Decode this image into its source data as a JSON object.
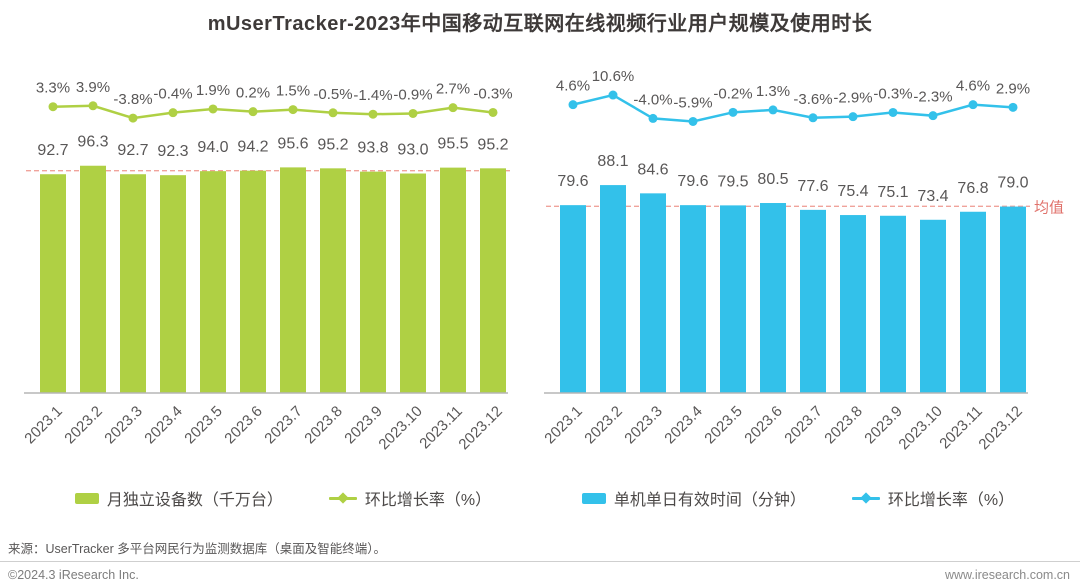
{
  "title": "mUserTracker-2023年中国移动互联网在线视频行业用户规模及使用时长",
  "colors": {
    "green": "#afd044",
    "blue": "#33c1ea",
    "mean_line": "#f0a39b",
    "mean_label": "#e0726b",
    "label_gray": "#595757",
    "axis": "#b5b5b6"
  },
  "chart_data": [
    {
      "type": "bar",
      "title": "",
      "categories": [
        "2023.1",
        "2023.2",
        "2023.3",
        "2023.4",
        "2023.5",
        "2023.6",
        "2023.7",
        "2023.8",
        "2023.9",
        "2023.10",
        "2023.11",
        "2023.12"
      ],
      "series": [
        {
          "name": "月独立设备数（千万台）",
          "type": "bar",
          "color": "#afd044",
          "values": [
            92.7,
            96.3,
            92.7,
            92.3,
            94.0,
            94.2,
            95.6,
            95.2,
            93.8,
            93.0,
            95.5,
            95.2
          ],
          "labels": [
            "92.7",
            "96.3",
            "92.7",
            "92.3",
            "94.0",
            "94.2",
            "95.6",
            "95.2",
            "93.8",
            "93.0",
            "95.5",
            "95.2"
          ]
        },
        {
          "name": "环比增长率（%）",
          "type": "line",
          "color": "#afd044",
          "values": [
            3.3,
            3.9,
            -3.8,
            -0.4,
            1.9,
            0.2,
            1.5,
            -0.5,
            -1.4,
            -0.9,
            2.7,
            -0.3
          ],
          "labels": [
            "3.3%",
            "3.9%",
            "-3.8%",
            "-0.4%",
            "1.9%",
            "0.2%",
            "1.5%",
            "-0.5%",
            "-1.4%",
            "-0.9%",
            "2.7%",
            "-0.3%"
          ]
        }
      ],
      "mean_line": true,
      "mean_label": "",
      "legend_position": "bottom",
      "grid": false
    },
    {
      "type": "bar",
      "title": "",
      "categories": [
        "2023.1",
        "2023.2",
        "2023.3",
        "2023.4",
        "2023.5",
        "2023.6",
        "2023.7",
        "2023.8",
        "2023.9",
        "2023.10",
        "2023.11",
        "2023.12"
      ],
      "series": [
        {
          "name": "单机单日有效时间（分钟）",
          "type": "bar",
          "color": "#33c1ea",
          "values": [
            79.6,
            88.1,
            84.6,
            79.6,
            79.5,
            80.5,
            77.6,
            75.4,
            75.1,
            73.4,
            76.8,
            79.0
          ],
          "labels": [
            "79.6",
            "88.1",
            "84.6",
            "79.6",
            "79.5",
            "80.5",
            "77.6",
            "75.4",
            "75.1",
            "73.4",
            "76.8",
            "79.0"
          ]
        },
        {
          "name": "环比增长率（%）",
          "type": "line",
          "color": "#33c1ea",
          "values": [
            4.6,
            10.6,
            -4.0,
            -5.9,
            -0.2,
            1.3,
            -3.6,
            -2.9,
            -0.3,
            -2.3,
            4.6,
            2.9
          ],
          "labels": [
            "4.6%",
            "10.6%",
            "-4.0%",
            "-5.9%",
            "-0.2%",
            "1.3%",
            "-3.6%",
            "-2.9%",
            "-0.3%",
            "-2.3%",
            "4.6%",
            "2.9%"
          ]
        }
      ],
      "mean_line": true,
      "mean_label": "均值",
      "legend_position": "bottom",
      "grid": false
    }
  ],
  "footer": {
    "source": "来源：UserTracker 多平台网民行为监测数据库（桌面及智能终端）。",
    "copyright": "©2024.3 iResearch Inc.",
    "website": "www.iresearch.com.cn"
  }
}
